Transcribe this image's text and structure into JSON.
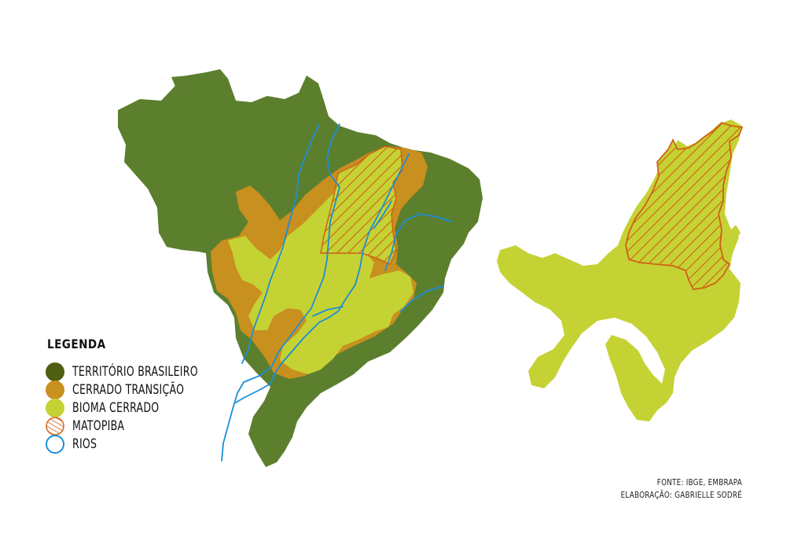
{
  "legend": {
    "title": "LEGENDA",
    "items": [
      {
        "label": "TERRITÓRIO BRASILEIRO",
        "color": "#5b6b1a"
      },
      {
        "label": "CERRADO TRANSIÇÃO",
        "color": "#c8901e"
      },
      {
        "label": "BIOMA CERRADO",
        "color": "#c5d233"
      },
      {
        "label": "MATOPIBA",
        "color": "#d06018"
      },
      {
        "label": "RIOS",
        "color": "#1a8fd8"
      }
    ]
  },
  "source": {
    "line1": "FONTE: IBGE, EMBRAPA",
    "line2": "ELABORAÇÃO: GABRIELLE SODRÉ"
  },
  "colors": {
    "territory": "#5c7f2e",
    "transition": "#c8901e",
    "cerrado": "#c5d233",
    "matopiba_stroke": "#d06018",
    "rivers": "#1a8fd8"
  }
}
